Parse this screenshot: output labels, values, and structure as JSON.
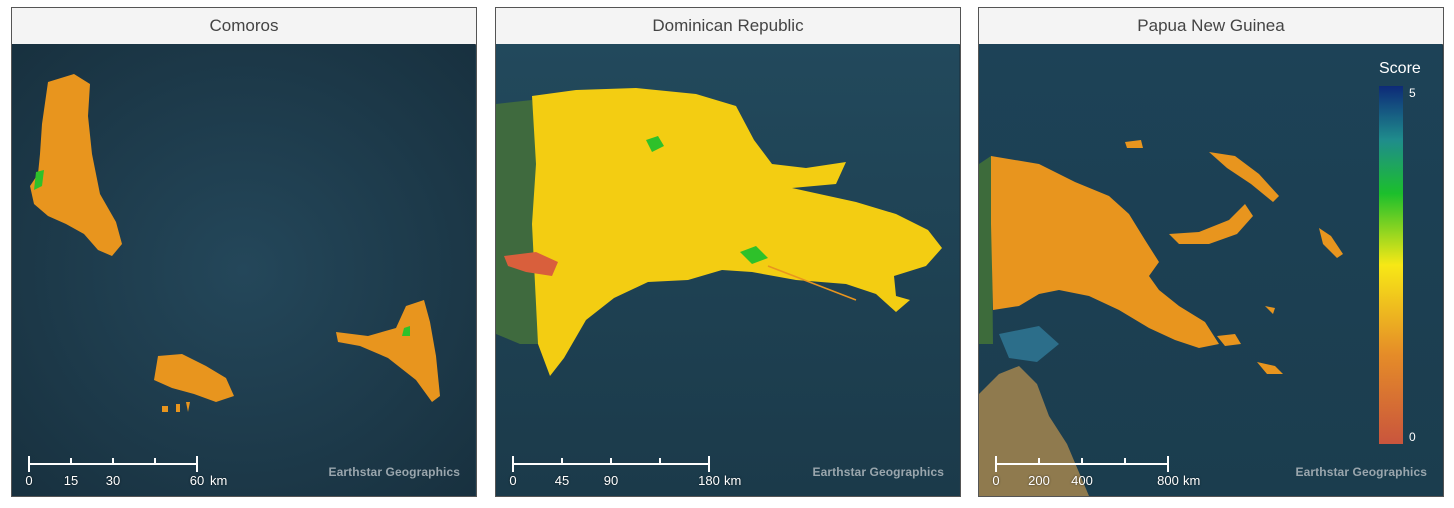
{
  "panels": [
    {
      "title": "Comoros",
      "scale": {
        "ticks": [
          "0",
          "15",
          "30",
          "",
          "60"
        ],
        "unit": "km"
      },
      "attribution": "Earthstar Geographics"
    },
    {
      "title": "Dominican Republic",
      "scale": {
        "ticks": [
          "0",
          "45",
          "90",
          "",
          "180"
        ],
        "unit": "km"
      },
      "attribution": "Earthstar Geographics"
    },
    {
      "title": "Papua New Guinea",
      "scale": {
        "ticks": [
          "0",
          "200",
          "400",
          "",
          "800"
        ],
        "unit": "km"
      },
      "attribution": "Earthstar Geographics"
    }
  ],
  "legend": {
    "title": "Score",
    "max_label": "5",
    "min_label": "0",
    "min_value": 0,
    "max_value": 5,
    "colors": [
      "#c9553d",
      "#e58c28",
      "#f7e816",
      "#1cbf2c",
      "#1f8c8c",
      "#0d2a78"
    ]
  },
  "colors": {
    "ocean": "#1d3a4a",
    "orange_score": "#e8951e",
    "yellow_score": "#f3cd12",
    "green_score": "#2ec12a"
  }
}
